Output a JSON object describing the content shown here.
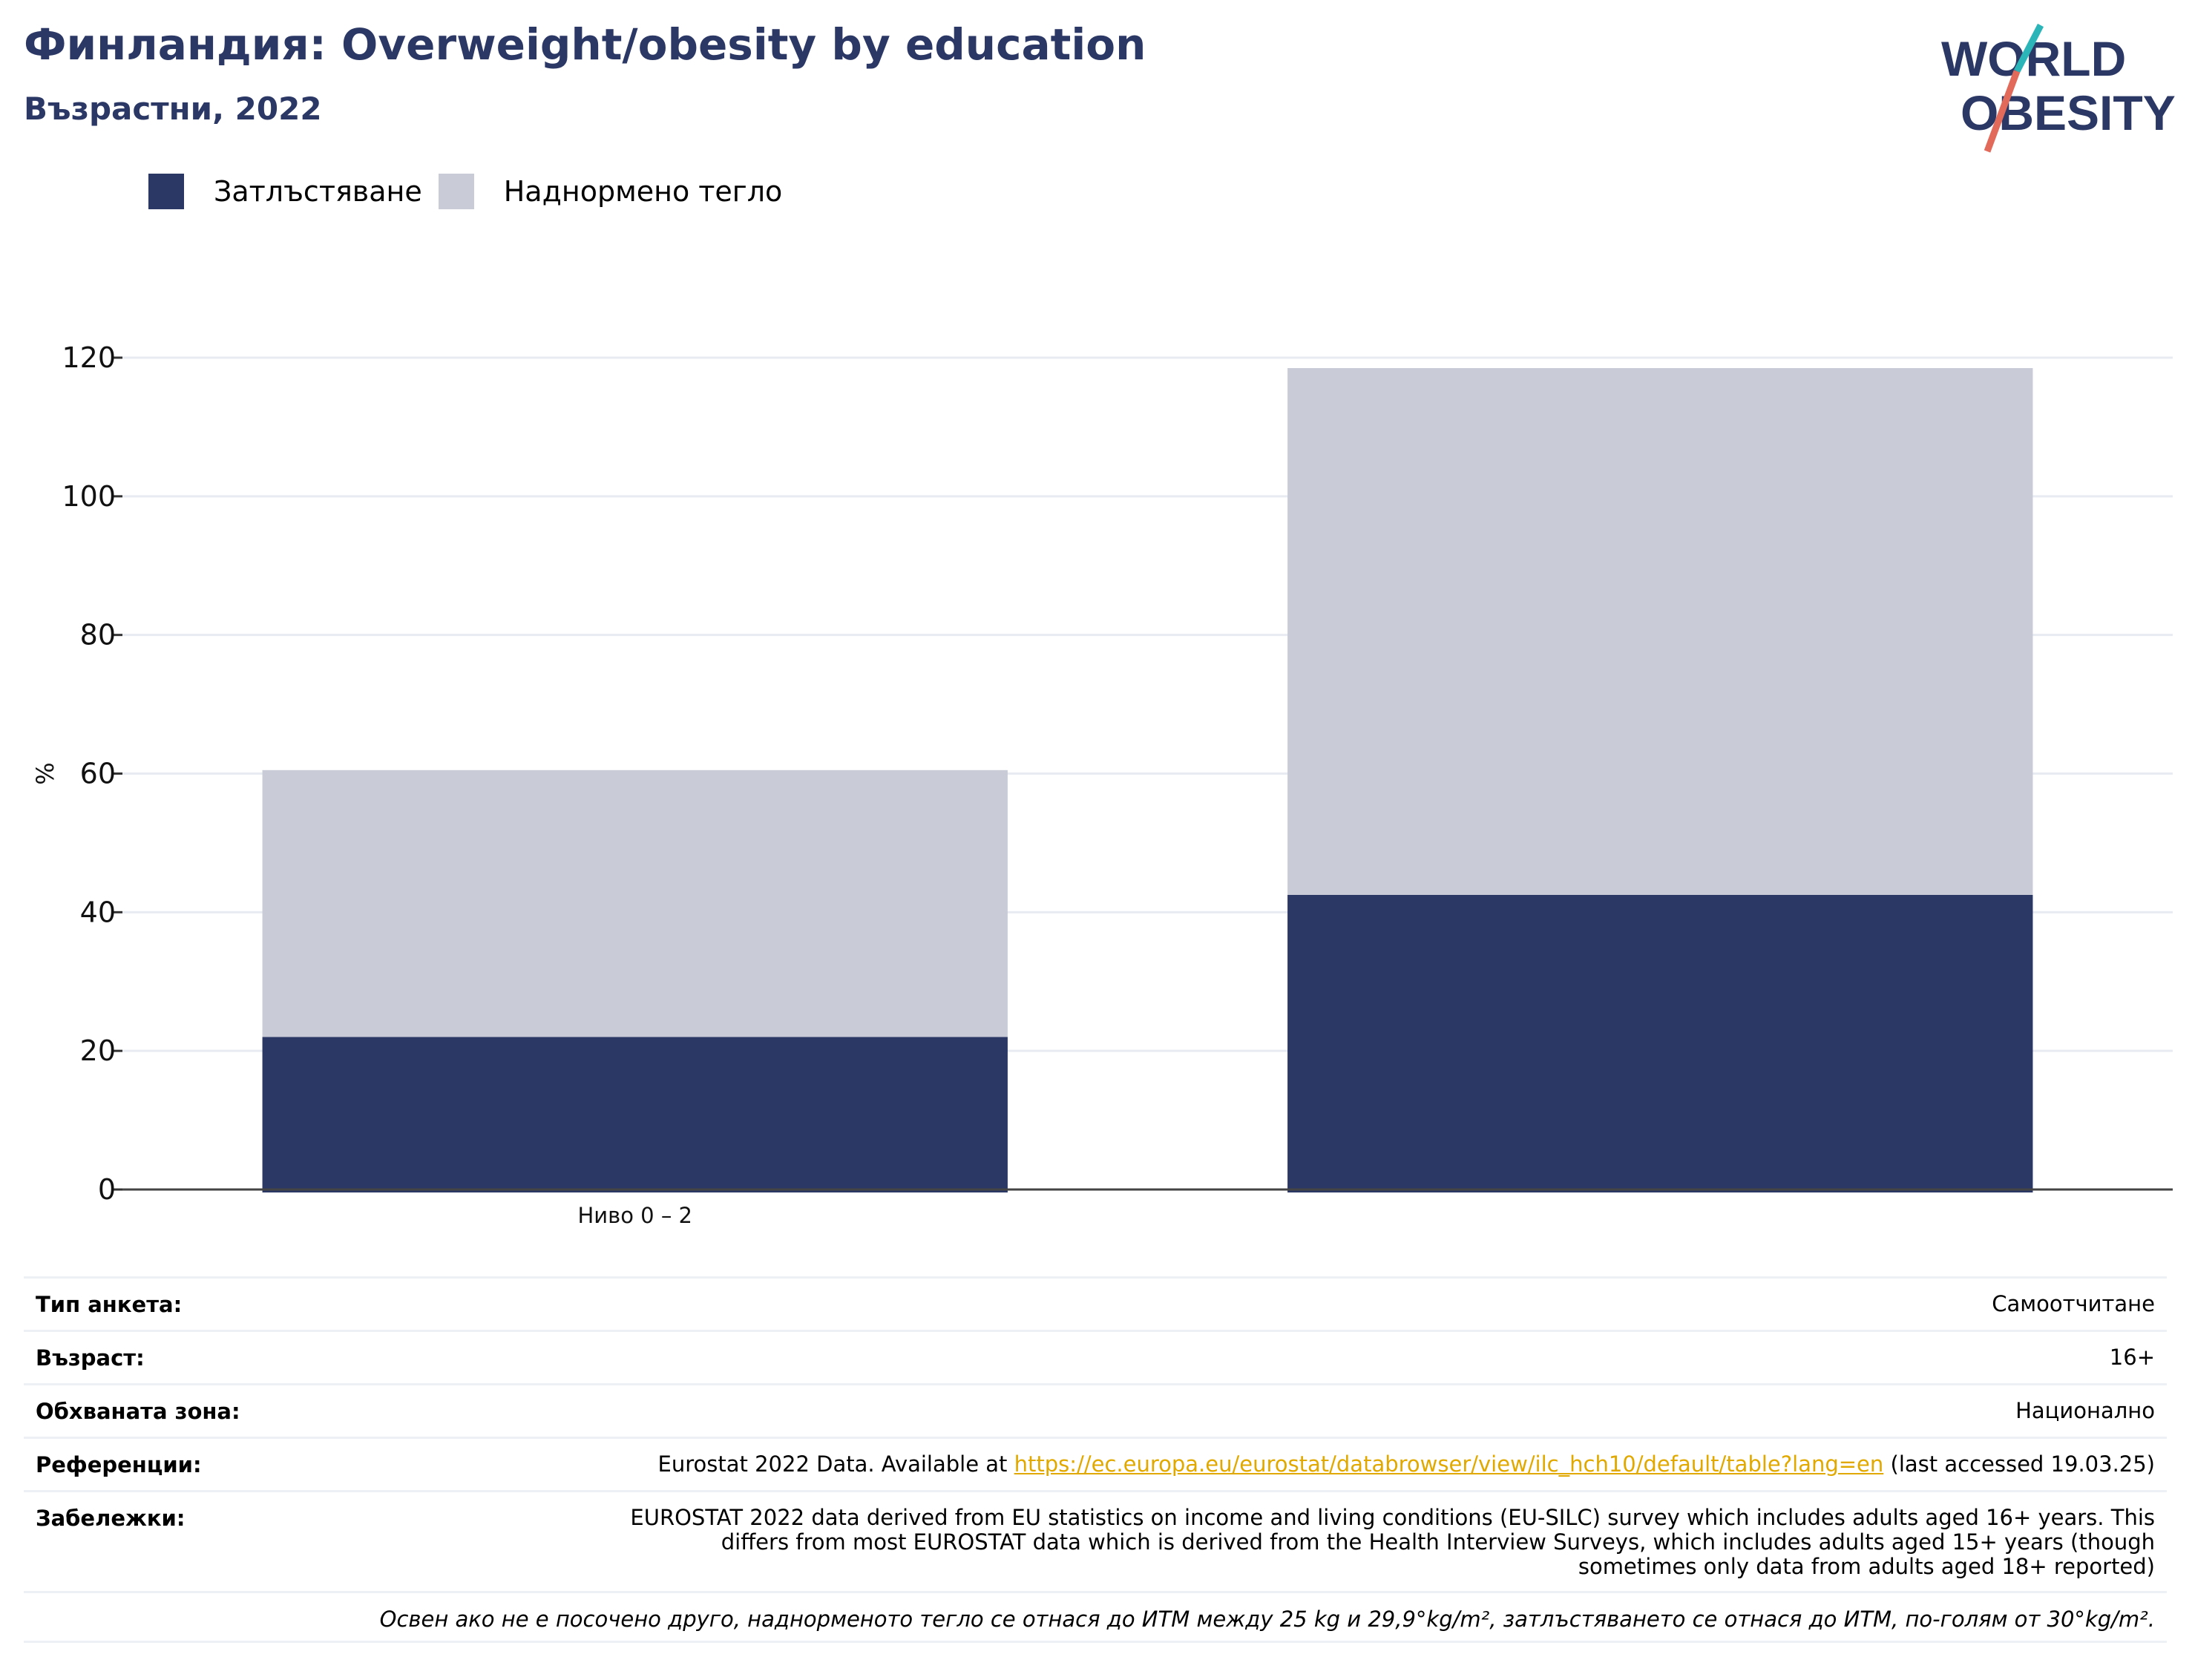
{
  "header": {
    "title": "Финландия: Overweight/obesity by education",
    "subtitle": "Възрастни, 2022"
  },
  "logo": {
    "line1": "WORLD",
    "line2": "OBESITY"
  },
  "colors": {
    "obesity": "#2b3764",
    "overweight": "#c9ccd7",
    "brand": "#2b3764",
    "link": "#e1a900",
    "logo_teal": "#2bb5b8",
    "logo_red": "#e26a5a"
  },
  "chart_data": {
    "type": "bar",
    "stacked": true,
    "categories": [
      "Ниво 0 – 2",
      ""
    ],
    "series": [
      {
        "name": "Затлъстяване",
        "values": [
          22.0,
          42.5
        ]
      },
      {
        "name": "Наднормено тегло",
        "values": [
          38.5,
          76.0
        ]
      }
    ],
    "ylabel": "%",
    "ylim": [
      0,
      120
    ],
    "yticks": [
      0,
      20,
      40,
      60,
      80,
      100,
      120
    ],
    "grid": true,
    "legend": "top-left"
  },
  "meta": {
    "survey_type_label": "Тип анкета:",
    "survey_type_value": "Самоотчитане",
    "age_label": "Възраст:",
    "age_value": "16+",
    "area_label": "Обхваната зона:",
    "area_value": "Национално",
    "refs_label": "Референции:",
    "refs_prefix": "Eurostat 2022 Data. Available at ",
    "refs_link": "https://ec.europa.eu/eurostat/databrowser/view/ilc_hch10/default/table?lang=en",
    "refs_suffix": " (last accessed 19.03.25)",
    "notes_label": "Забележки:",
    "notes_line1": "EUROSTAT 2022 data derived from EU statistics on income and living conditions (EU-SILC) survey which includes adults aged 16+ years. This",
    "notes_line2": "differs from most EUROSTAT data which is derived from the Health Interview Surveys, which includes adults aged 15+ years (though",
    "notes_line3": "sometimes only data from adults aged 18+ reported)",
    "footnote": "Освен ако не е посочено друго, наднорменото тегло се отнася до ИТМ между 25 kg и 29,9°kg/m², затлъстяването се отнася до ИТМ, по-голям от 30°kg/m²."
  }
}
